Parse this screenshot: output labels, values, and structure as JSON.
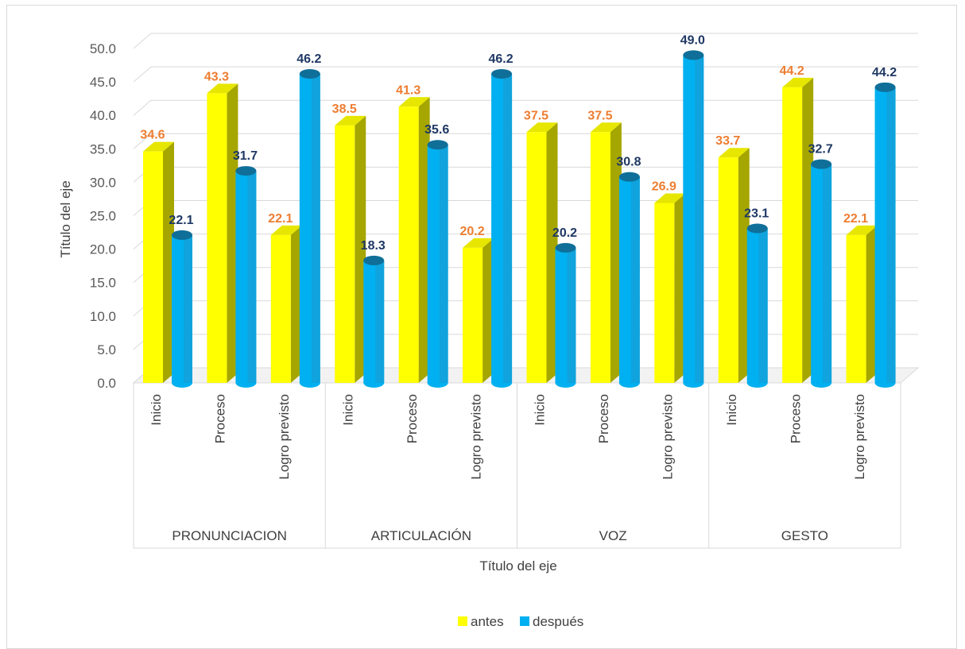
{
  "chart_data": {
    "type": "bar",
    "style": "3d-clustered-column",
    "xlabel": "Título del eje",
    "ylabel": "Título del eje",
    "ylim": [
      0,
      50
    ],
    "yticks": [
      "0.0",
      "5.0",
      "10.0",
      "15.0",
      "20.0",
      "25.0",
      "30.0",
      "35.0",
      "40.0",
      "45.0",
      "50.0"
    ],
    "grid": true,
    "legend_position": "bottom",
    "groups": [
      {
        "name": "PRONUNCIACION",
        "categories": [
          "Inicio",
          "Proceso",
          "Logro previsto"
        ]
      },
      {
        "name": "ARTICULACIÓN",
        "categories": [
          "Inicio",
          "Proceso",
          "Logro previsto"
        ]
      },
      {
        "name": "VOZ",
        "categories": [
          "Inicio",
          "Proceso",
          "Logro previsto"
        ]
      },
      {
        "name": "GESTO",
        "categories": [
          "Inicio",
          "Proceso",
          "Logro previsto"
        ]
      }
    ],
    "series": [
      {
        "name": "antes",
        "color": "#ffff00",
        "label_color": "#ed7d31",
        "values": [
          34.6,
          43.3,
          22.1,
          38.5,
          41.3,
          20.2,
          37.5,
          37.5,
          26.9,
          33.7,
          44.2,
          22.1
        ]
      },
      {
        "name": "después",
        "color": "#00b0f0",
        "label_color": "#1f3864",
        "values": [
          22.1,
          31.7,
          46.2,
          18.3,
          35.6,
          46.2,
          20.2,
          30.8,
          49.0,
          23.1,
          32.7,
          44.2
        ]
      }
    ]
  }
}
